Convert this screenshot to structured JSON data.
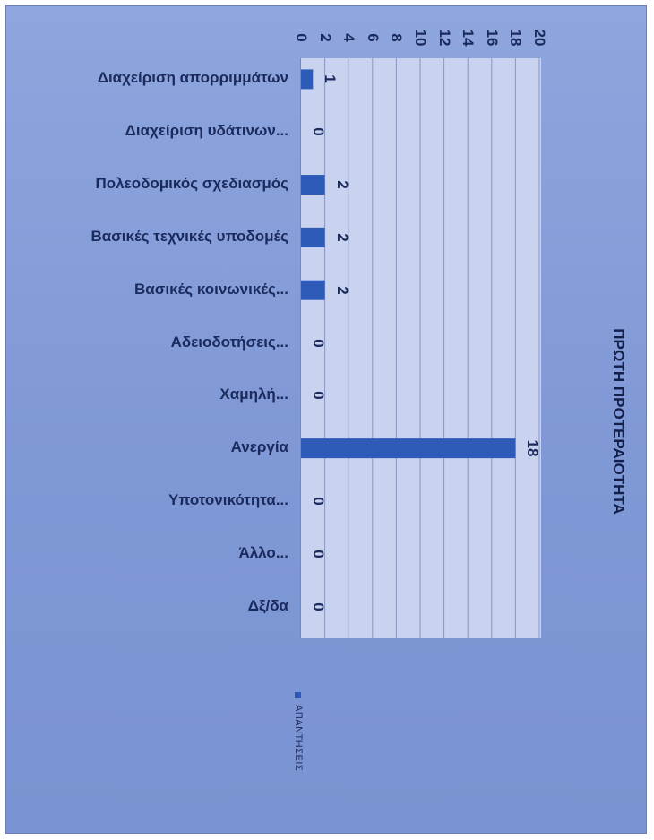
{
  "chart_data": {
    "type": "bar",
    "orientation": "horizontal",
    "title": "ΠΡΩΤΗ ΠΡΟΤΕΡΑΙΟΤΗΤΑ",
    "categories": [
      "Διαχείριση απορριμμάτων",
      "Διαχείριση υδάτινων...",
      "Πολεοδομικός σχεδιασμός",
      "Βασικές τεχνικές υποδομές",
      "Βασικές κοινωνικές...",
      "Αδειοδοτήσεις...",
      "Χαμηλή...",
      "Ανεργία",
      "Υποτονικότητα...",
      "Άλλο...",
      "Δξ/δα"
    ],
    "series": [
      {
        "name": "ΑΠΑΝΤΗΣΕΙΣ",
        "values": [
          1,
          0,
          2,
          2,
          2,
          0,
          0,
          18,
          0,
          0,
          0
        ],
        "color": "#2e5bb8"
      }
    ],
    "data_labels": [
      "1",
      "0",
      "2",
      "2",
      "2",
      "0",
      "0",
      "18",
      "0",
      "0",
      "0"
    ],
    "value_axis": {
      "min": 0,
      "max": 20,
      "ticks": [
        0,
        2,
        4,
        6,
        8,
        10,
        12,
        14,
        16,
        18,
        20
      ]
    },
    "grid": true,
    "legend_position": "bottom"
  },
  "colors": {
    "bar": "#2e5bb8",
    "plot_background": "#c9d3ef",
    "chart_background": "#8ea6dd",
    "gridline": "#8a96c4"
  }
}
